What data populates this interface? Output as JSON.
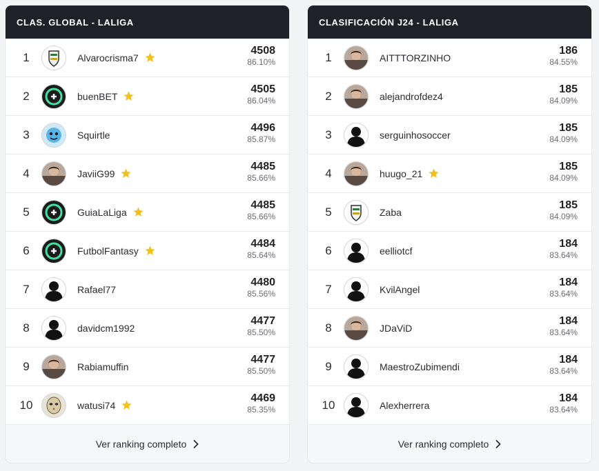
{
  "colors": {
    "header_bg": "#202126",
    "star": "#f2c21b",
    "footer_bg": "#f6f7f9"
  },
  "global": {
    "title": "CLAS. GLOBAL - LALIGA",
    "footer_label": "Ver ranking completo",
    "rows": [
      {
        "rank": "1",
        "user": "Alvarocrisma7",
        "points": "4508",
        "pct": "86.10%",
        "star": true,
        "avatar": "crest-avatar"
      },
      {
        "rank": "2",
        "user": "buenBET",
        "points": "4505",
        "pct": "86.04%",
        "star": true,
        "avatar": "brand-logo-avatar"
      },
      {
        "rank": "3",
        "user": "Squirtle",
        "points": "4496",
        "pct": "85.87%",
        "star": false,
        "avatar": "character-avatar"
      },
      {
        "rank": "4",
        "user": "JaviiG99",
        "points": "4485",
        "pct": "85.66%",
        "star": true,
        "avatar": "photo-avatar"
      },
      {
        "rank": "5",
        "user": "GuiaLaLiga",
        "points": "4485",
        "pct": "85.66%",
        "star": true,
        "avatar": "brand-logo-avatar"
      },
      {
        "rank": "6",
        "user": "FutbolFantasy",
        "points": "4484",
        "pct": "85.64%",
        "star": true,
        "avatar": "brand-logo-avatar"
      },
      {
        "rank": "7",
        "user": "Rafael77",
        "points": "4480",
        "pct": "85.56%",
        "star": false,
        "avatar": "default-user-avatar"
      },
      {
        "rank": "8",
        "user": "davidcm1992",
        "points": "4477",
        "pct": "85.50%",
        "star": false,
        "avatar": "default-user-avatar"
      },
      {
        "rank": "9",
        "user": "Rabiamuffin",
        "points": "4477",
        "pct": "85.50%",
        "star": false,
        "avatar": "photo-avatar"
      },
      {
        "rank": "10",
        "user": "watusi74",
        "points": "4469",
        "pct": "85.35%",
        "star": true,
        "avatar": "mask-avatar"
      }
    ]
  },
  "jornada": {
    "title": "CLASIFICACIÓN J24 - LALIGA",
    "footer_label": "Ver ranking completo",
    "rows": [
      {
        "rank": "1",
        "user": "AITTTORZINHO",
        "points": "186",
        "pct": "84.55%",
        "star": false,
        "avatar": "photo-avatar"
      },
      {
        "rank": "2",
        "user": "alejandrofdez4",
        "points": "185",
        "pct": "84.09%",
        "star": false,
        "avatar": "photo-avatar"
      },
      {
        "rank": "3",
        "user": "serguinhosoccer",
        "points": "185",
        "pct": "84.09%",
        "star": false,
        "avatar": "default-user-avatar"
      },
      {
        "rank": "4",
        "user": "huugo_21",
        "points": "185",
        "pct": "84.09%",
        "star": true,
        "avatar": "photo-avatar"
      },
      {
        "rank": "5",
        "user": "Zaba",
        "points": "185",
        "pct": "84.09%",
        "star": false,
        "avatar": "crest-avatar"
      },
      {
        "rank": "6",
        "user": "eelliotcf",
        "points": "184",
        "pct": "83.64%",
        "star": false,
        "avatar": "default-user-avatar"
      },
      {
        "rank": "7",
        "user": "KvilAngel",
        "points": "184",
        "pct": "83.64%",
        "star": false,
        "avatar": "default-user-avatar"
      },
      {
        "rank": "8",
        "user": "JDaViD",
        "points": "184",
        "pct": "83.64%",
        "star": false,
        "avatar": "photo-avatar"
      },
      {
        "rank": "9",
        "user": "MaestroZubimendi",
        "points": "184",
        "pct": "83.64%",
        "star": false,
        "avatar": "default-user-avatar"
      },
      {
        "rank": "10",
        "user": "Alexherrera",
        "points": "184",
        "pct": "83.64%",
        "star": false,
        "avatar": "default-user-avatar"
      }
    ]
  }
}
